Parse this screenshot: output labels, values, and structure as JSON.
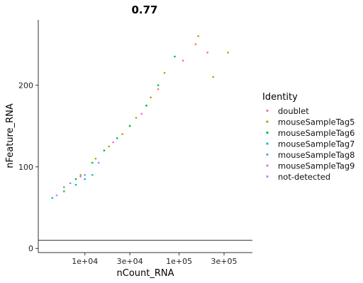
{
  "chart_data": {
    "type": "scatter",
    "title": "0.77",
    "xlabel": "nCount_RNA",
    "ylabel": "nFeature_RNA",
    "x_scale": "log10",
    "x_ticks": [
      {
        "value": 10000,
        "label": "1e+04"
      },
      {
        "value": 30000,
        "label": "3e+04"
      },
      {
        "value": 100000,
        "label": "1e+05"
      },
      {
        "value": 300000,
        "label": "3e+05"
      }
    ],
    "y_ticks": [
      {
        "value": 0,
        "label": "0"
      },
      {
        "value": 100,
        "label": "100"
      },
      {
        "value": 200,
        "label": "200"
      }
    ],
    "xlim": [
      3200,
      600000
    ],
    "ylim": [
      -5,
      280
    ],
    "hline": 10,
    "grid": false,
    "legend": {
      "title": "Identity",
      "position": "right",
      "entries": [
        {
          "label": "doublet",
          "color": "#F8766D"
        },
        {
          "label": "mouseSampleTag5",
          "color": "#B79F00"
        },
        {
          "label": "mouseSampleTag6",
          "color": "#00BA38"
        },
        {
          "label": "mouseSampleTag7",
          "color": "#00BFC4"
        },
        {
          "label": "mouseSampleTag8",
          "color": "#619CFF"
        },
        {
          "label": "mouseSampleTag9",
          "color": "#F564E3"
        },
        {
          "label": "not-detected",
          "color": "#C77CFF"
        }
      ]
    },
    "series": [
      {
        "name": "doublet",
        "color": "#F8766D",
        "points": [
          [
            30000,
            150
          ],
          [
            45000,
            175
          ],
          [
            60000,
            195
          ],
          [
            110000,
            230
          ],
          [
            150000,
            250
          ],
          [
            200000,
            240
          ]
        ]
      },
      {
        "name": "mouseSampleTag5",
        "color": "#B79F00",
        "points": [
          [
            6000,
            75
          ],
          [
            9000,
            90
          ],
          [
            13000,
            110
          ],
          [
            18000,
            125
          ],
          [
            25000,
            140
          ],
          [
            35000,
            160
          ],
          [
            50000,
            185
          ],
          [
            70000,
            215
          ],
          [
            160000,
            260
          ],
          [
            330000,
            240
          ],
          [
            230000,
            210
          ]
        ]
      },
      {
        "name": "mouseSampleTag6",
        "color": "#00BA38",
        "points": [
          [
            6000,
            70
          ],
          [
            8000,
            85
          ],
          [
            12000,
            105
          ],
          [
            16000,
            120
          ],
          [
            22000,
            135
          ],
          [
            30000,
            150
          ],
          [
            45000,
            175
          ],
          [
            60000,
            200
          ],
          [
            90000,
            235
          ]
        ]
      },
      {
        "name": "mouseSampleTag7",
        "color": "#00BFC4",
        "points": [
          [
            4500,
            62
          ],
          [
            6000,
            70
          ],
          [
            8000,
            78
          ],
          [
            10000,
            85
          ],
          [
            12000,
            90
          ]
        ]
      },
      {
        "name": "mouseSampleTag8",
        "color": "#619CFF",
        "points": [
          [
            7000,
            80
          ],
          [
            10000,
            90
          ],
          [
            14000,
            105
          ]
        ]
      },
      {
        "name": "mouseSampleTag9",
        "color": "#F564E3",
        "points": [
          [
            20000,
            130
          ],
          [
            40000,
            165
          ]
        ]
      },
      {
        "name": "not-detected",
        "color": "#C77CFF",
        "points": [
          [
            5000,
            65
          ],
          [
            9000,
            88
          ]
        ]
      }
    ]
  }
}
